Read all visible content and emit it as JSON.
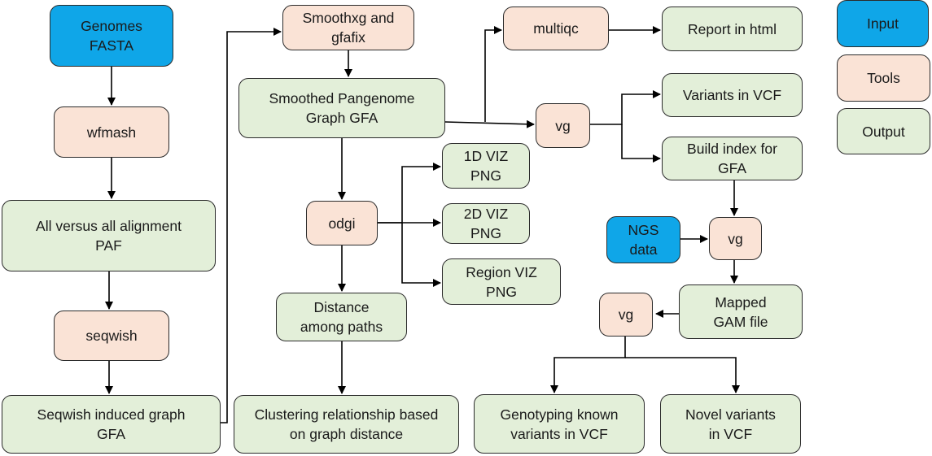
{
  "colors": {
    "input": "#0fa6e8",
    "tool": "#fae3d6",
    "output": "#e3efd9",
    "border": "#2b2b2b",
    "line": "#000000"
  },
  "nodes": {
    "genomes": "Genomes\nFASTA",
    "wfmash": "wfmash",
    "allvsall": "All versus all alignment\nPAF",
    "seqwish": "seqwish",
    "seqwish_graph": "Seqwish induced graph\nGFA",
    "smoothxg": "Smoothxg and\ngfafix",
    "smoothed": "Smoothed Pangenome\nGraph GFA",
    "odgi": "odgi",
    "distance": "Distance\namong paths",
    "clustering": "Clustering relationship based\non graph distance",
    "viz1d": "1D VIZ\nPNG",
    "viz2d": "2D VIZ\nPNG",
    "vizregion": "Region VIZ\nPNG",
    "multiqc": "multiqc",
    "report": "Report in html",
    "vg1": "vg",
    "variants_vcf": "Variants in VCF",
    "build_index": "Build index for\nGFA",
    "ngs": "NGS\ndata",
    "vg2": "vg",
    "mapped": "Mapped\nGAM file",
    "vg3": "vg",
    "genotyping": "Genotyping known\nvariants in VCF",
    "novel": "Novel variants\nin VCF"
  },
  "legend": {
    "input": "Input",
    "tools": "Tools",
    "output": "Output"
  }
}
